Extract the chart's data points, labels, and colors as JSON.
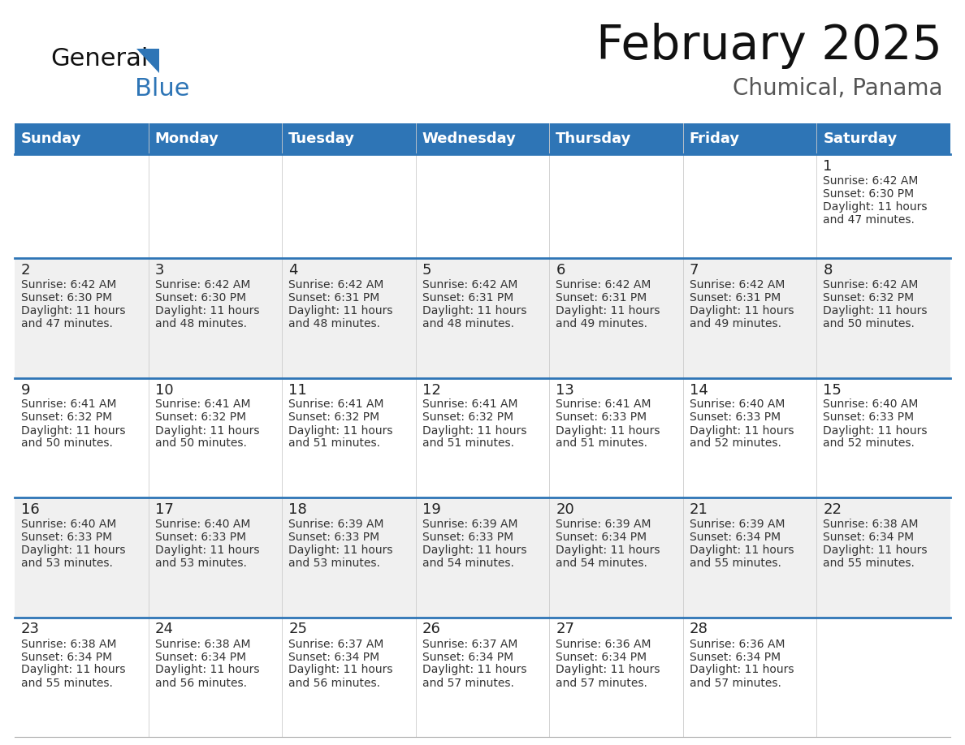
{
  "title": "February 2025",
  "subtitle": "Chumical, Panama",
  "days_of_week": [
    "Sunday",
    "Monday",
    "Tuesday",
    "Wednesday",
    "Thursday",
    "Friday",
    "Saturday"
  ],
  "header_bg": "#2E75B6",
  "header_text_color": "#FFFFFF",
  "row_bg_even": "#FFFFFF",
  "row_bg_odd": "#F0F0F0",
  "day_number_color": "#222222",
  "info_text_color": "#333333",
  "separator_color": "#2E75B6",
  "logo_general_color": "#111111",
  "logo_blue_color": "#2E75B6",
  "calendar_data": [
    {
      "day": 1,
      "col": 6,
      "row": 0,
      "sunrise": "6:42 AM",
      "sunset": "6:30 PM",
      "daylight_hours": 11,
      "daylight_minutes": 47
    },
    {
      "day": 2,
      "col": 0,
      "row": 1,
      "sunrise": "6:42 AM",
      "sunset": "6:30 PM",
      "daylight_hours": 11,
      "daylight_minutes": 47
    },
    {
      "day": 3,
      "col": 1,
      "row": 1,
      "sunrise": "6:42 AM",
      "sunset": "6:30 PM",
      "daylight_hours": 11,
      "daylight_minutes": 48
    },
    {
      "day": 4,
      "col": 2,
      "row": 1,
      "sunrise": "6:42 AM",
      "sunset": "6:31 PM",
      "daylight_hours": 11,
      "daylight_minutes": 48
    },
    {
      "day": 5,
      "col": 3,
      "row": 1,
      "sunrise": "6:42 AM",
      "sunset": "6:31 PM",
      "daylight_hours": 11,
      "daylight_minutes": 48
    },
    {
      "day": 6,
      "col": 4,
      "row": 1,
      "sunrise": "6:42 AM",
      "sunset": "6:31 PM",
      "daylight_hours": 11,
      "daylight_minutes": 49
    },
    {
      "day": 7,
      "col": 5,
      "row": 1,
      "sunrise": "6:42 AM",
      "sunset": "6:31 PM",
      "daylight_hours": 11,
      "daylight_minutes": 49
    },
    {
      "day": 8,
      "col": 6,
      "row": 1,
      "sunrise": "6:42 AM",
      "sunset": "6:32 PM",
      "daylight_hours": 11,
      "daylight_minutes": 50
    },
    {
      "day": 9,
      "col": 0,
      "row": 2,
      "sunrise": "6:41 AM",
      "sunset": "6:32 PM",
      "daylight_hours": 11,
      "daylight_minutes": 50
    },
    {
      "day": 10,
      "col": 1,
      "row": 2,
      "sunrise": "6:41 AM",
      "sunset": "6:32 PM",
      "daylight_hours": 11,
      "daylight_minutes": 50
    },
    {
      "day": 11,
      "col": 2,
      "row": 2,
      "sunrise": "6:41 AM",
      "sunset": "6:32 PM",
      "daylight_hours": 11,
      "daylight_minutes": 51
    },
    {
      "day": 12,
      "col": 3,
      "row": 2,
      "sunrise": "6:41 AM",
      "sunset": "6:32 PM",
      "daylight_hours": 11,
      "daylight_minutes": 51
    },
    {
      "day": 13,
      "col": 4,
      "row": 2,
      "sunrise": "6:41 AM",
      "sunset": "6:33 PM",
      "daylight_hours": 11,
      "daylight_minutes": 51
    },
    {
      "day": 14,
      "col": 5,
      "row": 2,
      "sunrise": "6:40 AM",
      "sunset": "6:33 PM",
      "daylight_hours": 11,
      "daylight_minutes": 52
    },
    {
      "day": 15,
      "col": 6,
      "row": 2,
      "sunrise": "6:40 AM",
      "sunset": "6:33 PM",
      "daylight_hours": 11,
      "daylight_minutes": 52
    },
    {
      "day": 16,
      "col": 0,
      "row": 3,
      "sunrise": "6:40 AM",
      "sunset": "6:33 PM",
      "daylight_hours": 11,
      "daylight_minutes": 53
    },
    {
      "day": 17,
      "col": 1,
      "row": 3,
      "sunrise": "6:40 AM",
      "sunset": "6:33 PM",
      "daylight_hours": 11,
      "daylight_minutes": 53
    },
    {
      "day": 18,
      "col": 2,
      "row": 3,
      "sunrise": "6:39 AM",
      "sunset": "6:33 PM",
      "daylight_hours": 11,
      "daylight_minutes": 53
    },
    {
      "day": 19,
      "col": 3,
      "row": 3,
      "sunrise": "6:39 AM",
      "sunset": "6:33 PM",
      "daylight_hours": 11,
      "daylight_minutes": 54
    },
    {
      "day": 20,
      "col": 4,
      "row": 3,
      "sunrise": "6:39 AM",
      "sunset": "6:34 PM",
      "daylight_hours": 11,
      "daylight_minutes": 54
    },
    {
      "day": 21,
      "col": 5,
      "row": 3,
      "sunrise": "6:39 AM",
      "sunset": "6:34 PM",
      "daylight_hours": 11,
      "daylight_minutes": 55
    },
    {
      "day": 22,
      "col": 6,
      "row": 3,
      "sunrise": "6:38 AM",
      "sunset": "6:34 PM",
      "daylight_hours": 11,
      "daylight_minutes": 55
    },
    {
      "day": 23,
      "col": 0,
      "row": 4,
      "sunrise": "6:38 AM",
      "sunset": "6:34 PM",
      "daylight_hours": 11,
      "daylight_minutes": 55
    },
    {
      "day": 24,
      "col": 1,
      "row": 4,
      "sunrise": "6:38 AM",
      "sunset": "6:34 PM",
      "daylight_hours": 11,
      "daylight_minutes": 56
    },
    {
      "day": 25,
      "col": 2,
      "row": 4,
      "sunrise": "6:37 AM",
      "sunset": "6:34 PM",
      "daylight_hours": 11,
      "daylight_minutes": 56
    },
    {
      "day": 26,
      "col": 3,
      "row": 4,
      "sunrise": "6:37 AM",
      "sunset": "6:34 PM",
      "daylight_hours": 11,
      "daylight_minutes": 57
    },
    {
      "day": 27,
      "col": 4,
      "row": 4,
      "sunrise": "6:36 AM",
      "sunset": "6:34 PM",
      "daylight_hours": 11,
      "daylight_minutes": 57
    },
    {
      "day": 28,
      "col": 5,
      "row": 4,
      "sunrise": "6:36 AM",
      "sunset": "6:34 PM",
      "daylight_hours": 11,
      "daylight_minutes": 57
    }
  ]
}
